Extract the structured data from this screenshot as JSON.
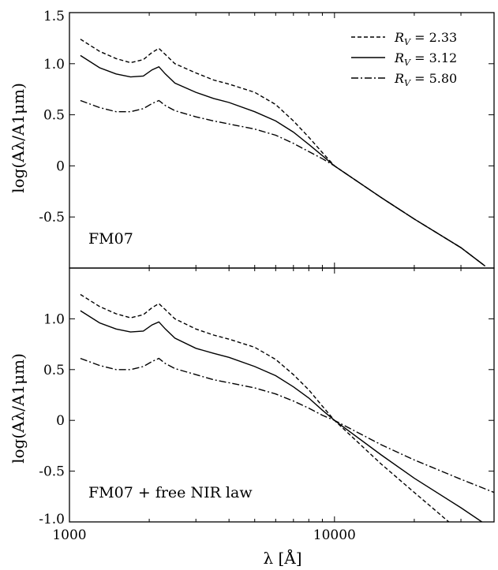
{
  "chart_data": [
    {
      "type": "line",
      "annotation": "FM07",
      "ylabel": "log(Aλ/A1μm)",
      "xscale": "log",
      "xlim": [
        1000,
        40000
      ],
      "ylim": [
        -1.0,
        1.5
      ],
      "yticks": [
        -0.5,
        0,
        0.5,
        1.0,
        1.5
      ],
      "ytick_labels": [
        "-0.5",
        "0",
        "0.5",
        "1.0",
        "1.5"
      ],
      "legend": {
        "placement": "top-right"
      },
      "series": [
        {
          "name": "R_V = 2.33",
          "style": "dashed",
          "x": [
            1100,
            1300,
            1500,
            1700,
            1900,
            2050,
            2175,
            2300,
            2500,
            3000,
            3500,
            4000,
            5000,
            6000,
            7000,
            8000,
            9000,
            10000,
            15000,
            20000,
            30000,
            37000
          ],
          "y": [
            1.24,
            1.12,
            1.05,
            1.01,
            1.04,
            1.11,
            1.15,
            1.09,
            1.0,
            0.91,
            0.84,
            0.8,
            0.72,
            0.6,
            0.44,
            0.28,
            0.13,
            0.0,
            -0.31,
            -0.52,
            -0.8,
            -0.98
          ]
        },
        {
          "name": "R_V = 3.12",
          "style": "solid",
          "x": [
            1100,
            1300,
            1500,
            1700,
            1900,
            2050,
            2175,
            2300,
            2500,
            3000,
            3500,
            4000,
            5000,
            6000,
            7000,
            8000,
            9000,
            10000,
            15000,
            20000,
            30000,
            37000
          ],
          "y": [
            1.08,
            0.96,
            0.9,
            0.87,
            0.88,
            0.94,
            0.97,
            0.9,
            0.81,
            0.72,
            0.66,
            0.62,
            0.53,
            0.44,
            0.33,
            0.21,
            0.1,
            0.0,
            -0.31,
            -0.52,
            -0.8,
            -0.98
          ]
        },
        {
          "name": "R_V = 5.80",
          "style": "dashdot",
          "x": [
            1100,
            1300,
            1500,
            1700,
            1900,
            2050,
            2175,
            2300,
            2500,
            3000,
            3500,
            4000,
            5000,
            6000,
            7000,
            8000,
            9000,
            10000,
            15000,
            20000,
            30000,
            37000
          ],
          "y": [
            0.64,
            0.57,
            0.53,
            0.53,
            0.56,
            0.61,
            0.64,
            0.59,
            0.54,
            0.48,
            0.44,
            0.41,
            0.36,
            0.3,
            0.22,
            0.14,
            0.07,
            0.0,
            -0.31,
            -0.52,
            -0.8,
            -0.98
          ]
        }
      ]
    },
    {
      "type": "line",
      "annotation": "FM07 + free NIR law",
      "ylabel": "log(Aλ/A1μm)",
      "xlabel": "λ [Å]",
      "xscale": "log",
      "xlim": [
        1000,
        40000
      ],
      "ylim": [
        -1.0,
        1.5
      ],
      "xticks": [
        1000,
        10000
      ],
      "xtick_labels": [
        "1000",
        "10000"
      ],
      "yticks": [
        -1.0,
        -0.5,
        0,
        0.5,
        1.0
      ],
      "ytick_labels": [
        "-1.0",
        "-0.5",
        "0",
        "0.5",
        "1.0"
      ],
      "series": [
        {
          "name": "R_V = 2.33",
          "style": "dashed",
          "x": [
            1100,
            1300,
            1500,
            1700,
            1900,
            2050,
            2175,
            2300,
            2500,
            3000,
            3500,
            4000,
            5000,
            6000,
            7000,
            8000,
            9000,
            10000,
            15000,
            20000,
            27000
          ],
          "y": [
            1.24,
            1.12,
            1.05,
            1.01,
            1.04,
            1.11,
            1.15,
            1.09,
            1.0,
            0.9,
            0.84,
            0.8,
            0.72,
            0.6,
            0.45,
            0.3,
            0.14,
            0.0,
            -0.43,
            -0.71,
            -1.0
          ]
        },
        {
          "name": "R_V = 3.12",
          "style": "solid",
          "x": [
            1100,
            1300,
            1500,
            1700,
            1900,
            2050,
            2175,
            2300,
            2500,
            3000,
            3500,
            4000,
            5000,
            6000,
            7000,
            8000,
            9000,
            10000,
            15000,
            20000,
            30000,
            36000
          ],
          "y": [
            1.08,
            0.96,
            0.9,
            0.87,
            0.88,
            0.94,
            0.97,
            0.9,
            0.81,
            0.71,
            0.66,
            0.62,
            0.53,
            0.44,
            0.33,
            0.22,
            0.1,
            0.0,
            -0.34,
            -0.57,
            -0.86,
            -1.0
          ]
        },
        {
          "name": "R_V = 5.80",
          "style": "dashdot",
          "x": [
            1100,
            1300,
            1500,
            1700,
            1900,
            2050,
            2175,
            2300,
            2500,
            3000,
            3500,
            4000,
            5000,
            6000,
            7000,
            8000,
            9000,
            10000,
            15000,
            20000,
            30000,
            40000
          ],
          "y": [
            0.61,
            0.54,
            0.5,
            0.5,
            0.53,
            0.58,
            0.61,
            0.56,
            0.51,
            0.45,
            0.4,
            0.37,
            0.32,
            0.26,
            0.19,
            0.12,
            0.05,
            0.0,
            -0.24,
            -0.39,
            -0.58,
            -0.71
          ]
        }
      ]
    }
  ]
}
